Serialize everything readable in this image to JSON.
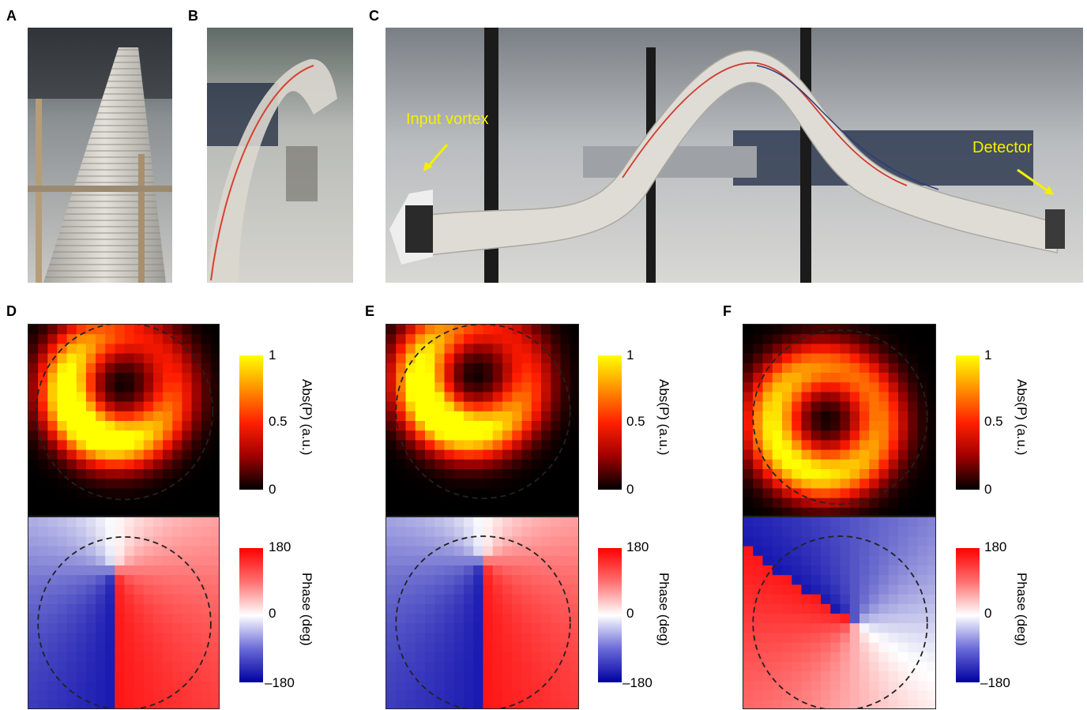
{
  "panels": {
    "A": "A",
    "B": "B",
    "C": "C",
    "D": "D",
    "E": "E",
    "F": "F"
  },
  "photo_c": {
    "input_label": "Input vortex",
    "detector_label": "Detector"
  },
  "colorbar_abs": {
    "label": "Abs(P) (a.u.)",
    "ticks": [
      "1",
      "0.5",
      "0"
    ]
  },
  "colorbar_phase": {
    "label": "Phase (deg)",
    "ticks": [
      "180",
      "0",
      "–180"
    ]
  },
  "colors": {
    "abs_scale": [
      "#000000",
      "#ff0000",
      "#ffff00"
    ],
    "phase_scale": [
      "#0000b0",
      "#ffffff",
      "#ff0000"
    ],
    "annotation": "#f5f000"
  }
}
